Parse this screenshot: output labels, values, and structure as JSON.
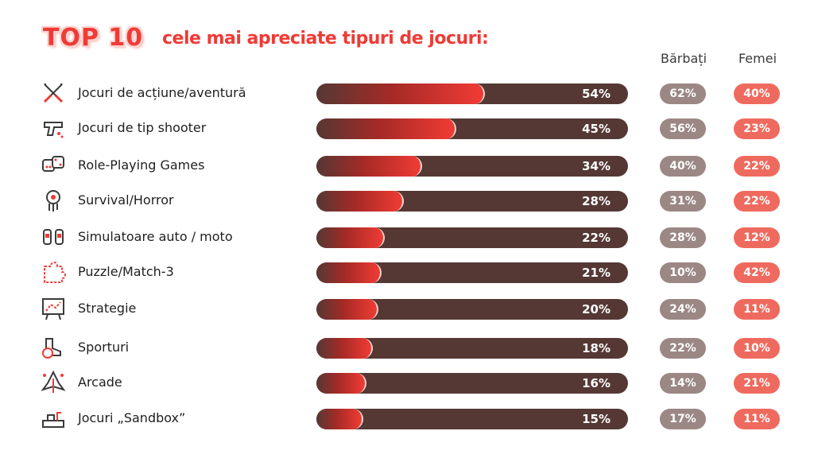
{
  "header": {
    "badge": "TOP 10",
    "subtitle": "cele mai apreciate tipuri de jocuri:",
    "col_men": "Bărbați",
    "col_women": "Femei"
  },
  "colors": {
    "bar_track": "#553834",
    "bar_fill": "#f13b34",
    "men_pill": "#9b8784",
    "women_pill": "#ef6a5e",
    "title": "#ef3b36"
  },
  "chart_data": {
    "type": "bar",
    "orientation": "horizontal",
    "xlim": [
      0,
      100
    ],
    "categories": [
      "Jocuri de acțiune/aventură",
      "Jocuri de tip shooter",
      "Role-Playing Games",
      "Survival/Horror",
      "Simulatoare auto / moto",
      "Puzzle/Match-3",
      "Strategie",
      "Sporturi",
      "Arcade",
      "Jocuri „Sandbox”"
    ],
    "icons": [
      "crossed-swords-icon",
      "pistol-icon",
      "dice-icon",
      "zombie-head-icon",
      "race-cars-icon",
      "puzzle-piece-icon",
      "strategy-board-icon",
      "soccer-boot-ball-icon",
      "arcade-ship-icon",
      "sandbox-blocks-icon"
    ],
    "series": [
      {
        "name": "",
        "values": [
          54,
          45,
          34,
          28,
          22,
          21,
          20,
          18,
          16,
          15
        ],
        "labels": [
          "54%",
          "45%",
          "34%",
          "28%",
          "22%",
          "21%",
          "20%",
          "18%",
          "16%",
          "15%"
        ]
      },
      {
        "name": "Bărbați",
        "values": [
          62,
          56,
          40,
          31,
          28,
          10,
          24,
          22,
          14,
          17
        ],
        "labels": [
          "62%",
          "56%",
          "40%",
          "31%",
          "28%",
          "10%",
          "24%",
          "22%",
          "14%",
          "17%"
        ]
      },
      {
        "name": "Femei",
        "values": [
          40,
          23,
          22,
          22,
          12,
          42,
          11,
          10,
          21,
          11
        ],
        "labels": [
          "40%",
          "23%",
          "22%",
          "22%",
          "12%",
          "42%",
          "11%",
          "10%",
          "21%",
          "11%"
        ]
      }
    ]
  }
}
